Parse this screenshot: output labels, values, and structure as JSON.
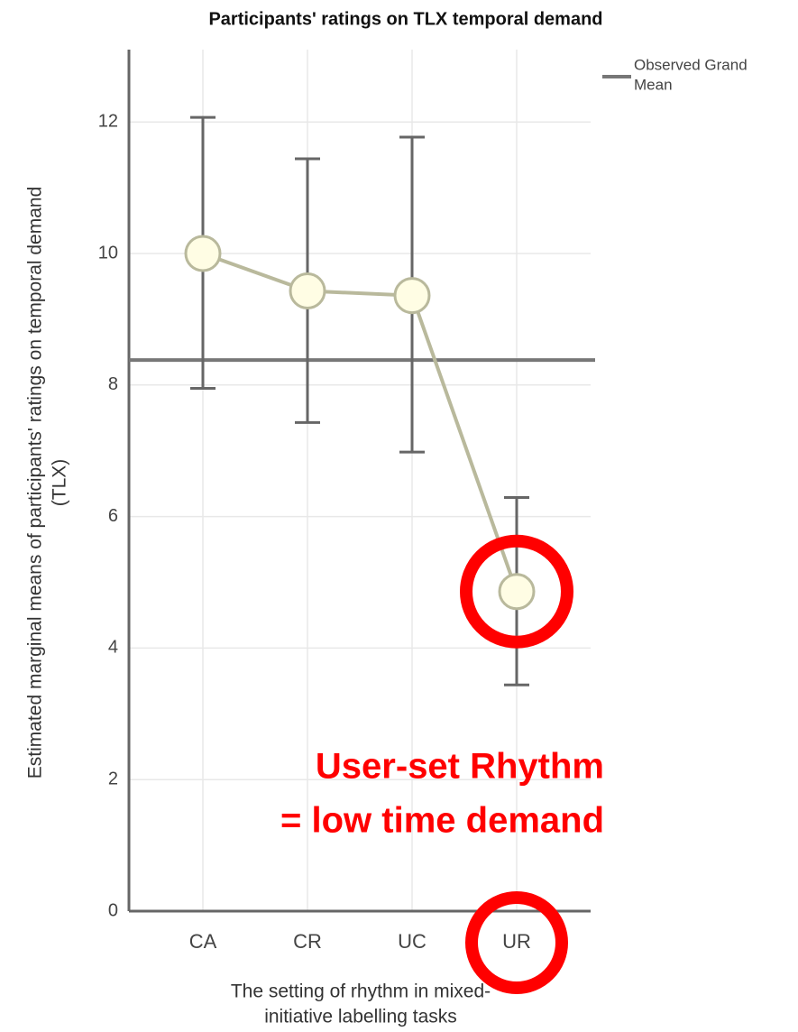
{
  "chart_data": {
    "type": "line",
    "title": "Participants' ratings on TLX temporal demand",
    "y_label": [
      "Estimated marginal means of participants' ratings on temporal demand",
      "(TLX)"
    ],
    "x_label": [
      "The setting of rhythm in mixed-",
      "initiative labelling tasks"
    ],
    "categories": [
      "CA",
      "CR",
      "UC",
      "UR"
    ],
    "series": [
      {
        "name": "Estimated marginal mean",
        "color": "#b9b99c",
        "values": [
          10.0,
          9.43,
          9.36,
          4.86
        ],
        "lower": [
          7.95,
          7.43,
          6.98,
          3.44
        ],
        "upper": [
          12.07,
          11.44,
          11.77,
          6.29
        ]
      }
    ],
    "reference_line": {
      "label": [
        "Observed Grand",
        "Mean"
      ],
      "value": 8.38,
      "color": "#777777"
    },
    "ylim": [
      0,
      13.1
    ],
    "yticks": [
      0,
      2,
      4,
      6,
      8,
      10,
      12
    ],
    "grid": true,
    "annotations": [
      "User-set Rhythm",
      "= low time demand"
    ]
  }
}
